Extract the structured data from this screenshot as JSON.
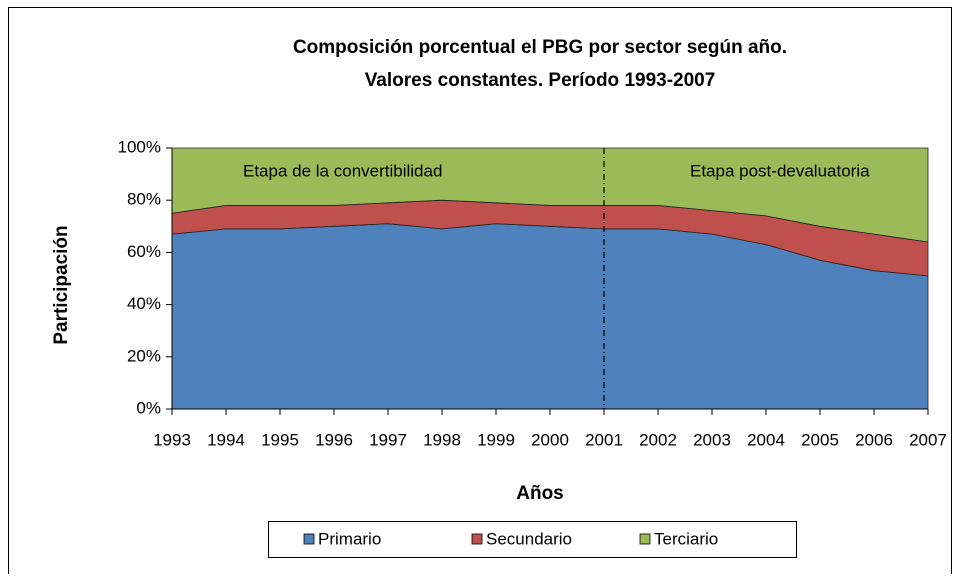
{
  "chart_data": {
    "type": "stacked-area",
    "title_lines": [
      "Composición porcentual el PBG por sector según año.",
      "Valores constantes. Período 1993-2007"
    ],
    "x_label": "Años",
    "y_label": "Participación",
    "categories": [
      "1993",
      "1994",
      "1995",
      "1996",
      "1997",
      "1998",
      "1999",
      "2000",
      "2001",
      "2002",
      "2003",
      "2004",
      "2005",
      "2006",
      "2007"
    ],
    "series": [
      {
        "name": "Primario",
        "color": "#4f81bd",
        "values": [
          67,
          69,
          69,
          70,
          71,
          69,
          71,
          70,
          69,
          69,
          67,
          63,
          57,
          53,
          51
        ]
      },
      {
        "name": "Secundario",
        "color": "#c0504d",
        "values": [
          8,
          9,
          9,
          8,
          8,
          11,
          8,
          8,
          9,
          9,
          9,
          11,
          13,
          14,
          13
        ]
      },
      {
        "name": "Terciario",
        "color": "#9bbb59",
        "values": [
          25,
          22,
          22,
          22,
          21,
          20,
          21,
          22,
          22,
          22,
          24,
          26,
          30,
          33,
          36
        ]
      }
    ],
    "ylim": [
      0,
      100
    ],
    "yticks": [
      {
        "value": 0,
        "label": "0%"
      },
      {
        "value": 20,
        "label": "20%"
      },
      {
        "value": 40,
        "label": "40%"
      },
      {
        "value": 60,
        "label": "60%"
      },
      {
        "value": 80,
        "label": "80%"
      },
      {
        "value": 100,
        "label": "100%"
      }
    ],
    "reference_line": "2001",
    "annotations": [
      "Etapa de la convertibilidad",
      "Etapa post-devaluatoria"
    ],
    "grid": false
  }
}
